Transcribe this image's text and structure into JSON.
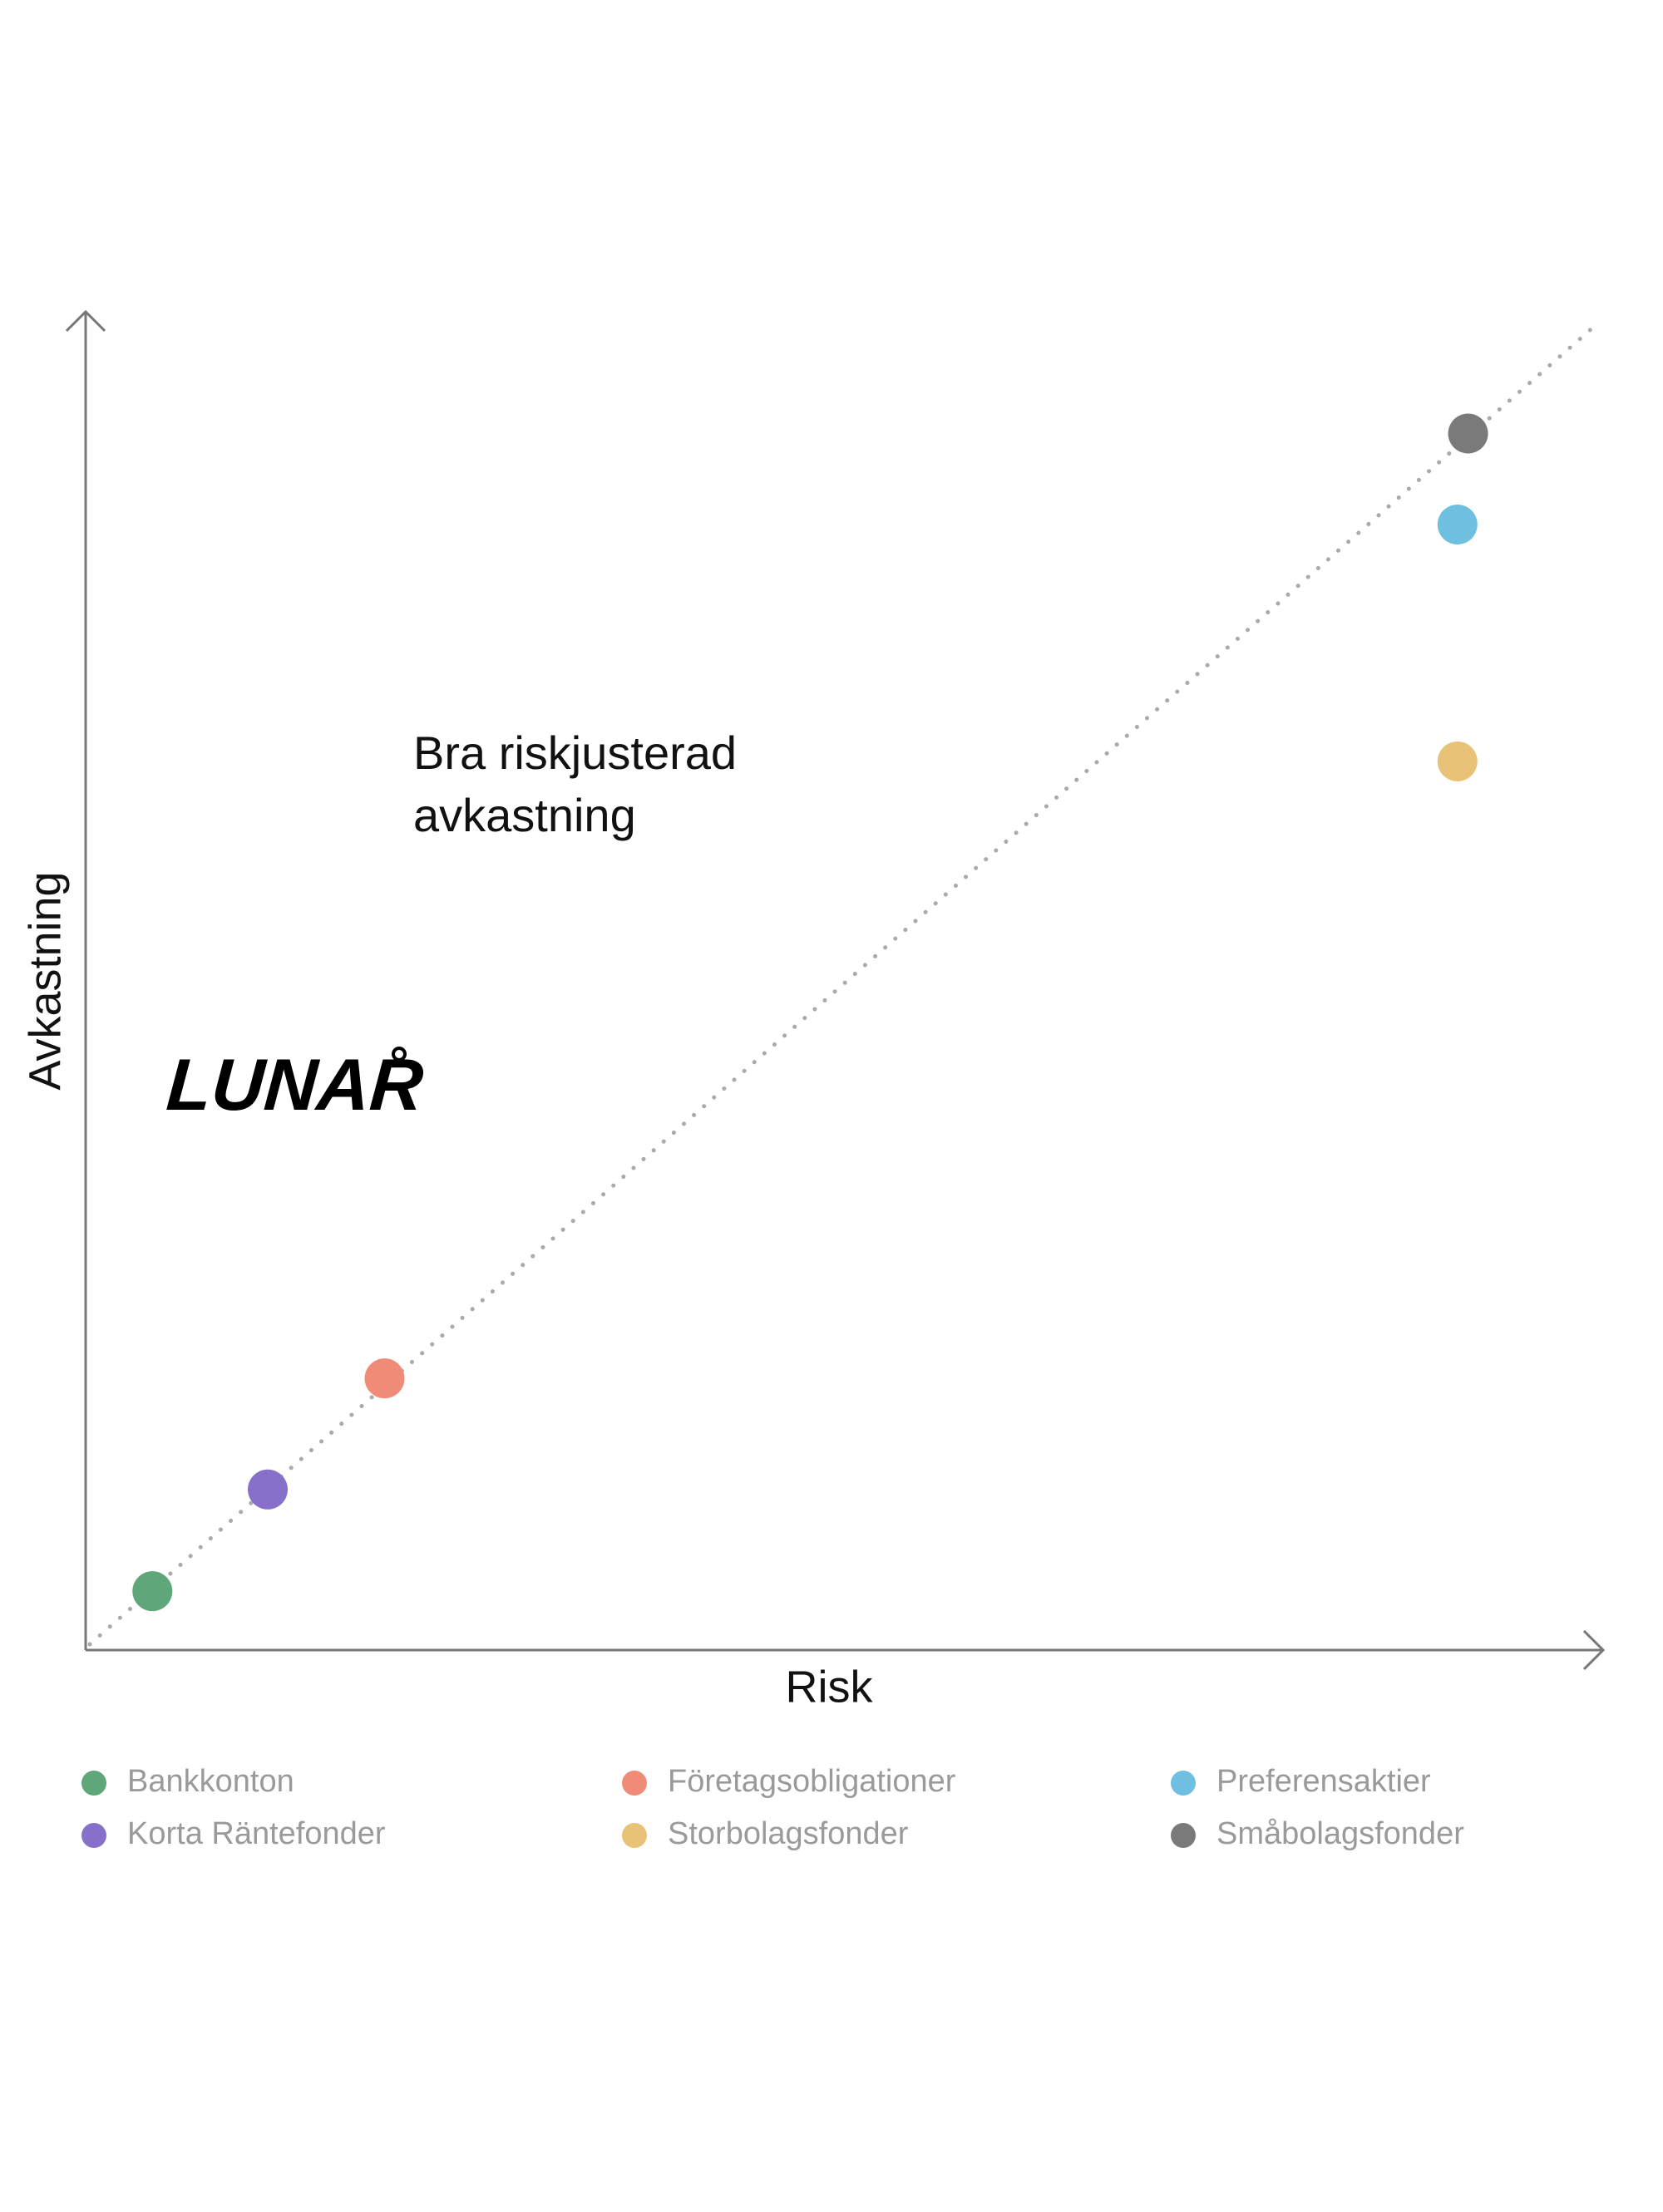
{
  "chart_data": {
    "type": "scatter",
    "x_label": "Risk",
    "y_label": "Avkastning",
    "annotation": [
      "Bra riskjusterad",
      "avkastning"
    ],
    "logo": "LUNAR",
    "xlim": [
      0,
      100
    ],
    "ylim": [
      0,
      100
    ],
    "series": [
      {
        "name": "Bankkonton",
        "color": "#5fa67a",
        "x": [
          4.4
        ],
        "values": [
          4.4
        ]
      },
      {
        "name": "Korta Räntefonder",
        "color": "#8670c9",
        "x": [
          12.0
        ],
        "values": [
          12.0
        ]
      },
      {
        "name": "Företagsobligationer",
        "color": "#f08b78",
        "x": [
          19.7
        ],
        "values": [
          20.3
        ]
      },
      {
        "name": "Storbolagsfonder",
        "color": "#e8c377",
        "x": [
          90.4
        ],
        "values": [
          66.4
        ]
      },
      {
        "name": "Preferensaktier",
        "color": "#6fc0e0",
        "x": [
          90.4
        ],
        "values": [
          84.1
        ]
      },
      {
        "name": "Småbolagsfonder",
        "color": "#7a7a7a",
        "x": [
          91.1
        ],
        "values": [
          90.9
        ]
      }
    ]
  }
}
